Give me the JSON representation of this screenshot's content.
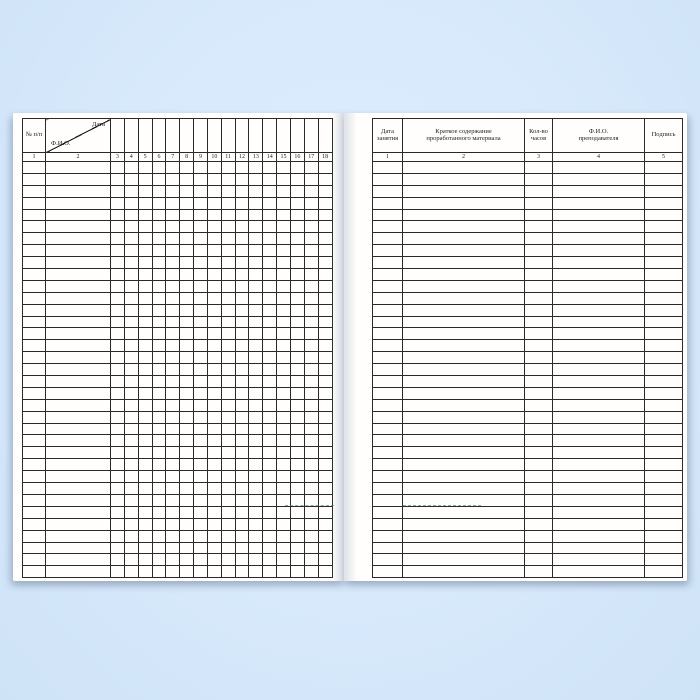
{
  "scene": {
    "background_color": "#d7e9fb",
    "page_color": "#fffefd",
    "line_color": "#2a2a2a",
    "watermark_color": "#3e9150"
  },
  "journal": {
    "left_page": {
      "row_number_header": "№ п/п",
      "diagonal_header": {
        "top_right": "Дата",
        "bottom_left": "Ф.И.О."
      },
      "date_column_count": 16,
      "column_numbers": [
        "1",
        "2",
        "3",
        "4",
        "5",
        "6",
        "7",
        "8",
        "9",
        "10",
        "11",
        "12",
        "13",
        "14",
        "15",
        "16",
        "17",
        "18"
      ],
      "data_row_count": 35
    },
    "right_page": {
      "column_headers": [
        "Дата\nзанятия",
        "Краткое содержание\nпроработанного материала",
        "Кол-во\nчасов",
        "Ф.И.О.\nпреподавателя",
        "Подпись"
      ],
      "column_numbers": [
        "1",
        "2",
        "3",
        "4",
        "5"
      ],
      "data_row_count": 35
    }
  }
}
